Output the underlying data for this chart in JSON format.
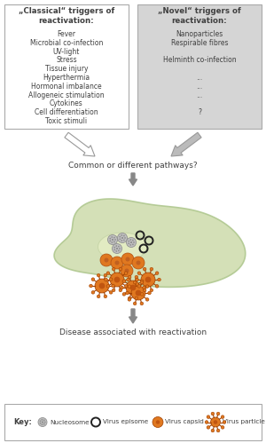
{
  "classical_title": "„Classical“ triggers of\nreactivation:",
  "classical_items": [
    "Fever",
    "Microbial co-infection",
    "UV-light",
    "Stress",
    "Tissue injury",
    "Hyperthermia",
    "Hormonal imbalance",
    "Allogeneic stimulation",
    "Cytokines",
    "Cell differentiation",
    "Toxic stimuli"
  ],
  "novel_items": [
    "Nanoparticles",
    "Respirable fibres",
    "",
    "Helminth co-infection",
    "",
    "...",
    "...",
    "...",
    "",
    "?"
  ],
  "novel_title": "„Novel“ triggers of\nreactivation:",
  "middle_text": "Common or different pathways?",
  "bottom_text": "Disease associated with reactivation",
  "key_label": "Key:",
  "key_items": [
    "Nucleosome",
    "Virus episome",
    "Virus capsid",
    "Virus particle"
  ],
  "box_left_bg": "#ffffff",
  "box_right_bg": "#d5d5d5",
  "arrow_color": "#888888",
  "orange_color": "#e07820",
  "text_color": "#404040",
  "cell_green": "#d0ddb0",
  "cell_edge": "#b0c890"
}
